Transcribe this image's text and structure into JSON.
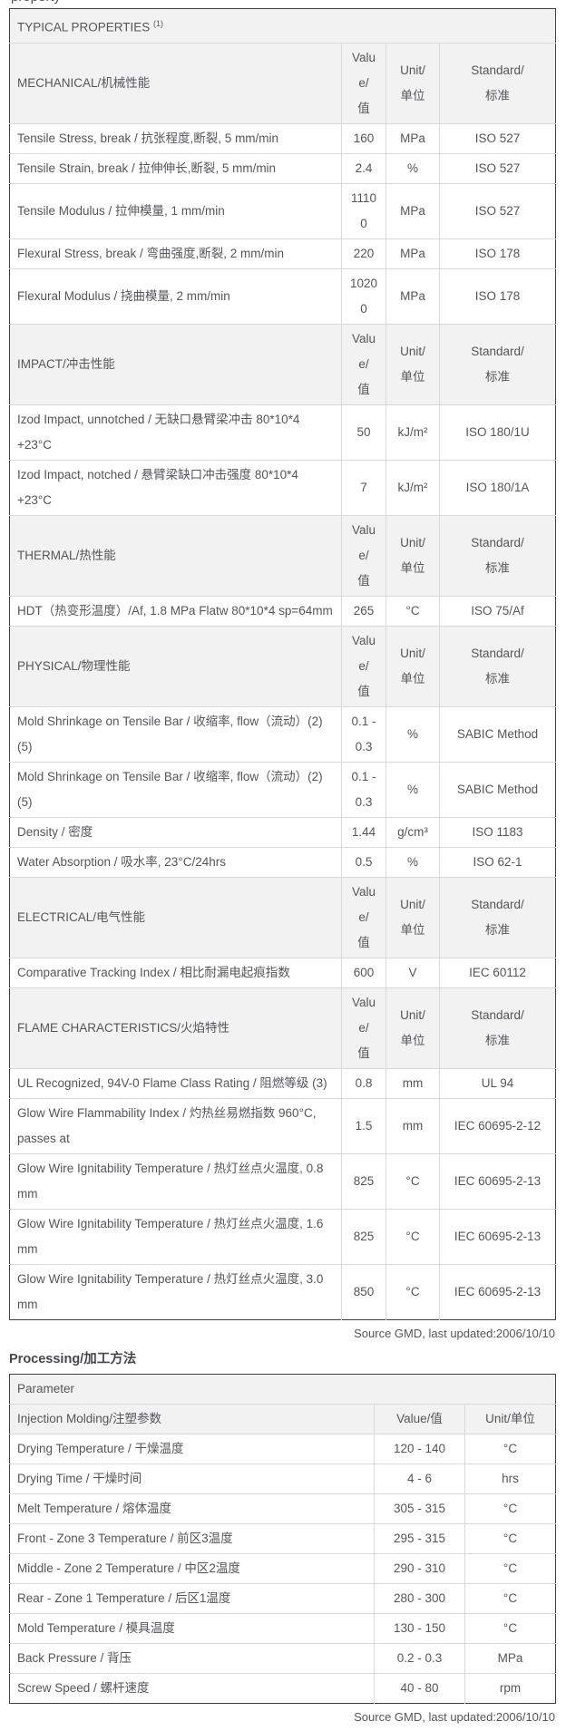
{
  "page": {
    "clipped_top_text": "property"
  },
  "colors": {
    "header_row_bg": "#f2f2f2",
    "text": "#54565a",
    "outer_border": "#3e3f41",
    "inner_border": "#d9d9d9"
  },
  "source_note": "Source GMD, last updated:2006/10/10",
  "typical_properties": {
    "title": "TYPICAL PROPERTIES ",
    "title_superscript": "(1)",
    "col_headers": [
      "Value/值",
      "Unit/单位",
      "Standard/标准"
    ],
    "sections": [
      {
        "name": "MECHANICAL/机械性能",
        "rows": [
          {
            "property": "Tensile Stress, break / 抗张程度,断裂, 5 mm/min",
            "value": "160",
            "unit": "MPa",
            "standard": "ISO 527"
          },
          {
            "property": "Tensile Strain, break / 拉伸伸长,断裂, 5 mm/min",
            "value": "2.4",
            "unit": "%",
            "standard": "ISO 527"
          },
          {
            "property": "Tensile Modulus / 拉伸模量, 1 mm/min",
            "value": "11100",
            "unit": "MPa",
            "standard": "ISO 527"
          },
          {
            "property": "Flexural Stress, break / 弯曲强度,断裂, 2 mm/min",
            "value": "220",
            "unit": "MPa",
            "standard": "ISO 178"
          },
          {
            "property": "Flexural Modulus / 挠曲模量, 2 mm/min",
            "value": "10200",
            "unit": "MPa",
            "standard": "ISO 178"
          }
        ]
      },
      {
        "name": "IMPACT/冲击性能",
        "rows": [
          {
            "property": "Izod Impact, unnotched / 无缺口悬臂梁冲击 80*10*4 +23°C",
            "value": "50",
            "unit": "kJ/m²",
            "standard": "ISO 180/1U"
          },
          {
            "property": "Izod Impact, notched / 悬臂梁缺口冲击强度 80*10*4 +23°C",
            "value": "7",
            "unit": "kJ/m²",
            "standard": "ISO 180/1A"
          }
        ]
      },
      {
        "name": "THERMAL/热性能",
        "rows": [
          {
            "property": "HDT（热变形温度）/Af, 1.8 MPa Flatw 80*10*4 sp=64mm",
            "value": "265",
            "unit": "°C",
            "standard": "ISO 75/Af"
          }
        ]
      },
      {
        "name": "PHYSICAL/物理性能",
        "rows": [
          {
            "property": "Mold Shrinkage on Tensile Bar / 收缩率, flow（流动）(2) (5)",
            "value": "0.1 - 0.3",
            "unit": "%",
            "standard": "SABIC Method"
          },
          {
            "property": "Mold Shrinkage on Tensile Bar / 收缩率, flow（流动）(2) (5)",
            "value": "0.1 - 0.3",
            "unit": "%",
            "standard": "SABIC Method"
          },
          {
            "property": "Density / 密度",
            "value": "1.44",
            "unit": "g/cm³",
            "standard": "ISO 1183"
          },
          {
            "property": "Water Absorption / 吸水率, 23°C/24hrs",
            "value": "0.5",
            "unit": "%",
            "standard": "ISO 62-1"
          }
        ]
      },
      {
        "name": "ELECTRICAL/电气性能",
        "rows": [
          {
            "property": "Comparative Tracking Index / 相比耐漏电起痕指数",
            "value": "600",
            "unit": "V",
            "standard": "IEC 60112"
          }
        ]
      },
      {
        "name": "FLAME CHARACTERISTICS/火焰特性",
        "rows": [
          {
            "property": "UL Recognized, 94V-0 Flame Class Rating / 阻燃等级 (3)",
            "value": "0.8",
            "unit": "mm",
            "standard": "UL 94"
          },
          {
            "property": "Glow Wire Flammability Index / 灼热丝易燃指数 960°C, passes at",
            "value": "1.5",
            "unit": "mm",
            "standard": "IEC 60695-2-12"
          },
          {
            "property": "Glow Wire Ignitability Temperature / 热灯丝点火温度, 0.8 mm",
            "value": "825",
            "unit": "°C",
            "standard": "IEC 60695-2-13"
          },
          {
            "property": "Glow Wire Ignitability Temperature / 热灯丝点火温度, 1.6 mm",
            "value": "825",
            "unit": "°C",
            "standard": "IEC 60695-2-13"
          },
          {
            "property": "Glow Wire Ignitability Temperature / 热灯丝点火温度, 3.0 mm",
            "value": "850",
            "unit": "°C",
            "standard": "IEC 60695-2-13"
          }
        ]
      }
    ]
  },
  "processing": {
    "heading": "Processing/加工方法",
    "param_header": "Parameter",
    "subheader": "Injection Molding/注塑参数",
    "col_headers": [
      "Value/值",
      "Unit/单位"
    ],
    "rows": [
      {
        "parameter": "Drying Temperature / 干燥温度",
        "value": "120 - 140",
        "unit": "°C"
      },
      {
        "parameter": "Drying Time / 干燥时间",
        "value": "4 - 6",
        "unit": "hrs"
      },
      {
        "parameter": "Melt Temperature / 熔体温度",
        "value": "305 - 315",
        "unit": "°C"
      },
      {
        "parameter": "Front - Zone 3 Temperature / 前区3温度",
        "value": "295 - 315",
        "unit": "°C"
      },
      {
        "parameter": "Middle - Zone 2 Temperature / 中区2温度",
        "value": "290 - 310",
        "unit": "°C"
      },
      {
        "parameter": "Rear - Zone 1 Temperature / 后区1温度",
        "value": "280 - 300",
        "unit": "°C"
      },
      {
        "parameter": "Mold Temperature / 模具温度",
        "value": "130 - 150",
        "unit": "°C"
      },
      {
        "parameter": "Back Pressure / 背压",
        "value": "0.2 - 0.3",
        "unit": "MPa"
      },
      {
        "parameter": "Screw Speed / 螺杆速度",
        "value": "40 - 80",
        "unit": "rpm"
      }
    ]
  }
}
